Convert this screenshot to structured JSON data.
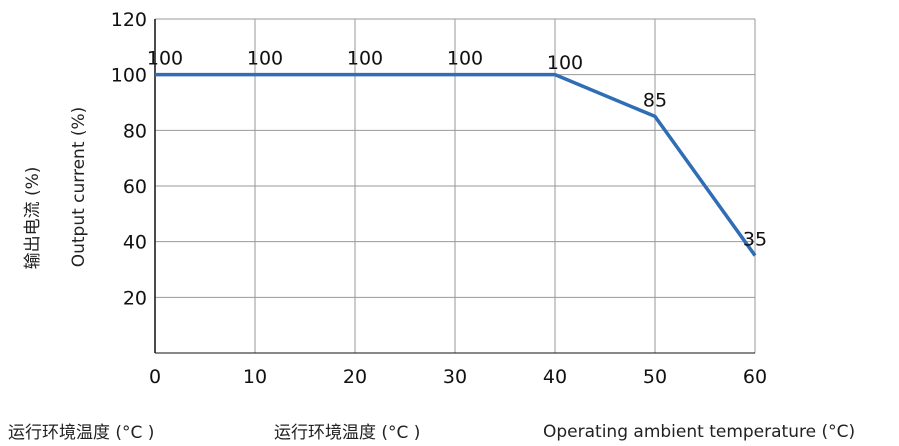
{
  "chart_data": {
    "type": "line",
    "x": [
      0,
      10,
      20,
      30,
      40,
      50,
      60
    ],
    "series": [
      {
        "values": [
          100,
          100,
          100,
          100,
          100,
          85,
          35
        ],
        "color": "#2f6db5"
      }
    ],
    "data_labels": [
      {
        "x": 1,
        "text": "100"
      },
      {
        "x": 11,
        "text": "100"
      },
      {
        "x": 21,
        "text": "100"
      },
      {
        "x": 31,
        "text": "100"
      },
      {
        "x": 41,
        "text": "100"
      },
      {
        "x": 50,
        "text": "85"
      },
      {
        "x": 60,
        "text": "35"
      }
    ],
    "xticks": [
      "0",
      "10",
      "20",
      "30",
      "40",
      "50",
      "60"
    ],
    "yticks": [
      "20",
      "40",
      "60",
      "80",
      "100",
      "120"
    ],
    "xlim": [
      0,
      60
    ],
    "ylim": [
      0,
      120
    ],
    "grid": true,
    "ylabel_cn": "输出电流 (%)",
    "ylabel_en": "Output current (%)",
    "xlabel_cn_1": "运行环境温度 (°C )",
    "xlabel_cn_2": "运行环境温度 (°C )",
    "xlabel_en": "Operating ambient temperature (°C)",
    "grid_color": "#999999",
    "axis_color": "#111111"
  }
}
